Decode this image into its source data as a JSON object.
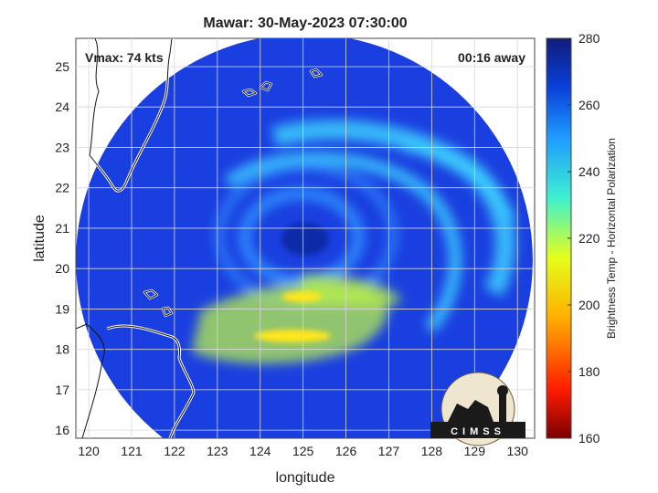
{
  "title": "Mawar: 30-May-2023 07:30:00",
  "annotations": {
    "vmax": "Vmax: 74 kts",
    "timing": "00:16 away"
  },
  "axes": {
    "xlabel": "longitude",
    "ylabel": "latitude",
    "x_ticks": [
      "120",
      "121",
      "122",
      "123",
      "124",
      "125",
      "126",
      "127",
      "128",
      "129",
      "130"
    ],
    "y_ticks": [
      "16",
      "17",
      "18",
      "19",
      "20",
      "21",
      "22",
      "23",
      "24",
      "25"
    ],
    "xlim": [
      119.7,
      130.4
    ],
    "ylim": [
      15.8,
      25.7
    ],
    "grid": true
  },
  "colorbar": {
    "label": "Brightness Temp - Horizontal Polarization",
    "ticks": [
      "160",
      "180",
      "200",
      "220",
      "240",
      "260",
      "280"
    ],
    "range": [
      160,
      280
    ],
    "colors": [
      "#7a0000",
      "#ff1a00",
      "#ffae00",
      "#e6ff1a",
      "#3ff0d0",
      "#1f9cff",
      "#0a3ed8",
      "#101c7a"
    ]
  },
  "storm_center": {
    "lon": 125.0,
    "lat": 20.6
  },
  "swath_colors": {
    "base": "#1a3fe0",
    "ring": "#2f8dff",
    "band": "#3fd6ff",
    "warm": "#b8f04a",
    "hot": "#ffe61a",
    "eye": "#0b2aa8"
  },
  "logo": {
    "text": "CIMSS"
  }
}
